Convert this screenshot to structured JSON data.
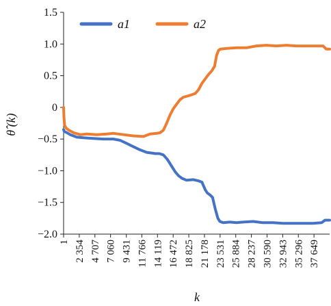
{
  "chart_data": {
    "type": "line",
    "xlabel": "k",
    "ylabel": "θ̂ (k)",
    "ylim": [
      -2.0,
      1.5
    ],
    "yticks": [
      1.5,
      1.0,
      0.5,
      0,
      -0.5,
      -1.0,
      -1.5,
      -2.0
    ],
    "ytick_labels": [
      "1.5",
      "1.0",
      "0.5",
      "0",
      "−0.5",
      "−1.0",
      "−1.5",
      "−2.0"
    ],
    "xlim": [
      1,
      40000
    ],
    "xtick_labels": [
      "1",
      "2 354",
      "4 707",
      "7 060",
      "9 431",
      "11 766",
      "14 119",
      "16 472",
      "18 825",
      "21 178",
      "23 531",
      "25 884",
      "28 237",
      "30 590",
      "32 943",
      "35 296",
      "37 649"
    ],
    "xticks": [
      1,
      2354,
      4707,
      7060,
      9431,
      11766,
      14119,
      16472,
      18825,
      21178,
      23531,
      25884,
      28237,
      30590,
      32943,
      35296,
      37649
    ],
    "grid": false,
    "legend_position": "top",
    "series": [
      {
        "name": "a1",
        "color": "#4472c4",
        "x": [
          1,
          100,
          500,
          1000,
          2000,
          3000,
          4500,
          6000,
          7500,
          8500,
          9500,
          10500,
          11500,
          12500,
          13200,
          13800,
          14400,
          15000,
          15600,
          16200,
          16800,
          17300,
          17800,
          18500,
          19500,
          20300,
          20800,
          21300,
          21600,
          22000,
          22400,
          22800,
          23200,
          23500,
          24000,
          25000,
          26000,
          27000,
          28500,
          30000,
          31500,
          33000,
          34500,
          36000,
          37500,
          38800,
          39300,
          40000
        ],
        "values": [
          -0.35,
          -0.38,
          -0.4,
          -0.43,
          -0.47,
          -0.48,
          -0.49,
          -0.5,
          -0.5,
          -0.52,
          -0.57,
          -0.62,
          -0.67,
          -0.71,
          -0.72,
          -0.73,
          -0.73,
          -0.75,
          -0.82,
          -0.92,
          -1.02,
          -1.08,
          -1.12,
          -1.15,
          -1.14,
          -1.16,
          -1.18,
          -1.3,
          -1.35,
          -1.38,
          -1.42,
          -1.6,
          -1.75,
          -1.8,
          -1.82,
          -1.81,
          -1.82,
          -1.81,
          -1.8,
          -1.82,
          -1.82,
          -1.83,
          -1.83,
          -1.83,
          -1.83,
          -1.82,
          -1.78,
          -1.78
        ]
      },
      {
        "name": "a2",
        "color": "#ed7d31",
        "x": [
          1,
          50,
          150,
          400,
          800,
          1500,
          2500,
          3500,
          5000,
          6500,
          7500,
          9000,
          10500,
          12000,
          13000,
          14000,
          14500,
          15000,
          15500,
          16000,
          16500,
          17000,
          17500,
          18000,
          19000,
          19800,
          20300,
          20800,
          21300,
          21800,
          22300,
          22700,
          23000,
          23300,
          23600,
          24500,
          26000,
          27500,
          29000,
          30500,
          32000,
          33500,
          35000,
          36500,
          38000,
          39000,
          39500,
          40000
        ],
        "values": [
          0.0,
          -0.15,
          -0.28,
          -0.33,
          -0.36,
          -0.4,
          -0.43,
          -0.42,
          -0.43,
          -0.42,
          -0.41,
          -0.43,
          -0.45,
          -0.46,
          -0.42,
          -0.41,
          -0.4,
          -0.36,
          -0.25,
          -0.12,
          -0.02,
          0.05,
          0.12,
          0.16,
          0.19,
          0.22,
          0.28,
          0.38,
          0.45,
          0.52,
          0.58,
          0.65,
          0.82,
          0.9,
          0.92,
          0.93,
          0.94,
          0.94,
          0.97,
          0.98,
          0.97,
          0.98,
          0.97,
          0.97,
          0.97,
          0.97,
          0.92,
          0.92
        ]
      }
    ]
  }
}
